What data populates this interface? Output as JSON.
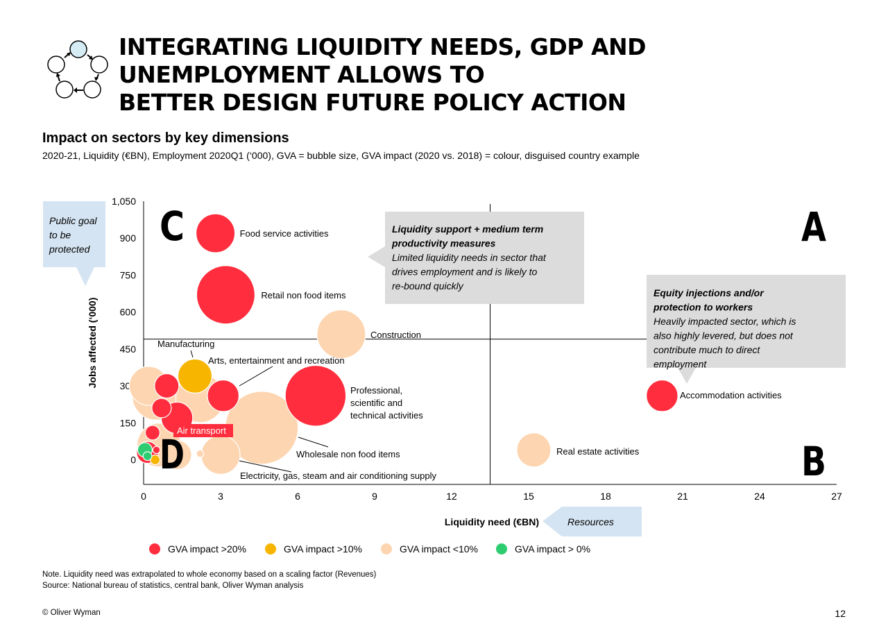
{
  "header": {
    "title_line1": "INTEGRATING LIQUIDITY NEEDS, GDP AND UNEMPLOYMENT ALLOWS TO",
    "title_line2": "BETTER DESIGN FUTURE POLICY ACTION",
    "subtitle": "Impact on sectors by key dimensions",
    "description": "2020-21, Liquidity (€BN), Employment 2020Q1 (‘000), GVA = bubble size, GVA impact (2020 vs. 2018) = colour, disguised country example"
  },
  "colors": {
    "gt20": "#ff2d3d",
    "gt10": "#f7b500",
    "lt10": "#fdd5b0",
    "gt0": "#2ecc71",
    "callout_blue": "#d5e4f2",
    "callout_grey": "#dcdcdc"
  },
  "chart_data": {
    "type": "scatter",
    "subtype": "bubble",
    "xlabel": "Liquidity need (€BN)",
    "ylabel": "Jobs affected (‘000)",
    "xlim": [
      0,
      27
    ],
    "ylim": [
      -100,
      1050
    ],
    "x_ticks": [
      "0",
      "3",
      "6",
      "9",
      "12",
      "15",
      "18",
      "21",
      "24",
      "27"
    ],
    "y_ticks": [
      "1,050",
      "900",
      "750",
      "600",
      "450",
      "300",
      "150",
      "0"
    ],
    "quadrant_lines": {
      "x": 13.5,
      "y": 490
    },
    "quadrant_letters": [
      "A",
      "B",
      "C",
      "D"
    ],
    "legend": [
      {
        "label": "GVA impact >20%",
        "color": "gt20"
      },
      {
        "label": "GVA impact >10%",
        "color": "gt10"
      },
      {
        "label": "GVA impact <10%",
        "color": "lt10"
      },
      {
        "label": "GVA impact > 0%",
        "color": "gt0"
      }
    ],
    "points": [
      {
        "label": "Construction",
        "x": 7.7,
        "y": 510,
        "size": 10,
        "color": "lt10"
      },
      {
        "label": "Wholesale non food items",
        "x": 4.6,
        "y": 130,
        "size": 15,
        "color": "lt10"
      },
      {
        "label": "Electricity, gas, steam and air conditioning supply",
        "x": 3.0,
        "y": 20,
        "size": 8,
        "color": "lt10"
      },
      {
        "label": "",
        "x": 0.5,
        "y": 260,
        "size": 10,
        "color": "lt10"
      },
      {
        "label": "",
        "x": 0.2,
        "y": 300,
        "size": 8,
        "color": "lt10"
      },
      {
        "label": "",
        "x": 0.6,
        "y": 60,
        "size": 9,
        "color": "lt10"
      },
      {
        "label": "",
        "x": 1.3,
        "y": 20,
        "size": 6,
        "color": "lt10"
      },
      {
        "label": "",
        "x": 2.2,
        "y": 250,
        "size": 10,
        "color": "lt10"
      },
      {
        "label": "",
        "x": 2.2,
        "y": 25,
        "size": 1.5,
        "color": "lt10"
      },
      {
        "label": "Real estate activities",
        "x": 15.2,
        "y": 40,
        "size": 7,
        "color": "lt10"
      },
      {
        "label": "Food service activities",
        "x": 2.8,
        "y": 920,
        "size": 8,
        "color": "gt20"
      },
      {
        "label": "Retail non food items",
        "x": 3.2,
        "y": 670,
        "size": 12,
        "color": "gt20"
      },
      {
        "label": "Professional, scientific and technical activities",
        "x": 6.7,
        "y": 260,
        "size": 12.5,
        "color": "gt20"
      },
      {
        "label": "Arts, entertainment and recreation",
        "x": 3.1,
        "y": 260,
        "size": 6.5,
        "color": "gt20"
      },
      {
        "label": "Accommodation activities",
        "x": 20.2,
        "y": 260,
        "size": 6.5,
        "color": "gt20"
      },
      {
        "label": "",
        "x": 1.3,
        "y": 170,
        "size": 6.5,
        "color": "gt20"
      },
      {
        "label": "",
        "x": 0.9,
        "y": 300,
        "size": 5,
        "color": "gt20"
      },
      {
        "label": "",
        "x": 0.7,
        "y": 210,
        "size": 4,
        "color": "gt20"
      },
      {
        "label": "Air transport",
        "x": 0.35,
        "y": 110,
        "size": 3,
        "color": "gt20"
      },
      {
        "label": "",
        "x": 0.15,
        "y": 30,
        "size": 4.5,
        "color": "gt20"
      },
      {
        "label": "",
        "x": 0.5,
        "y": 40,
        "size": 1.5,
        "color": "gt20"
      },
      {
        "label": "Manufacturing",
        "x": 2.0,
        "y": 340,
        "size": 7,
        "color": "gt10"
      },
      {
        "label": "",
        "x": 0.45,
        "y": 0,
        "size": 2,
        "color": "gt10"
      },
      {
        "label": "",
        "x": 0.05,
        "y": 40,
        "size": 3,
        "color": "gt0"
      },
      {
        "label": "",
        "x": 0.15,
        "y": 15,
        "size": 1.8,
        "color": "gt0"
      }
    ],
    "annotations": {
      "callout_c_title": "Liquidity support + medium term productivity measures",
      "callout_c_body": "Limited liquidity needs in sector that drives employment and is likely to re-bound quickly",
      "callout_a_title": "Equity injections and/or protection to workers",
      "callout_a_body": "Heavily impacted sector, which is also highly levered, but does not contribute much to direct employment",
      "public_goal": "Public goal to be protected",
      "resources": "Resources"
    }
  },
  "footer": {
    "note": "Note. Liquidity need was extrapolated to whole economy based on a scaling factor (Revenues)",
    "source": "Source: National bureau of statistics, central bank, Oliver Wyman analysis",
    "copyright": "© Oliver Wyman",
    "page": "12"
  }
}
